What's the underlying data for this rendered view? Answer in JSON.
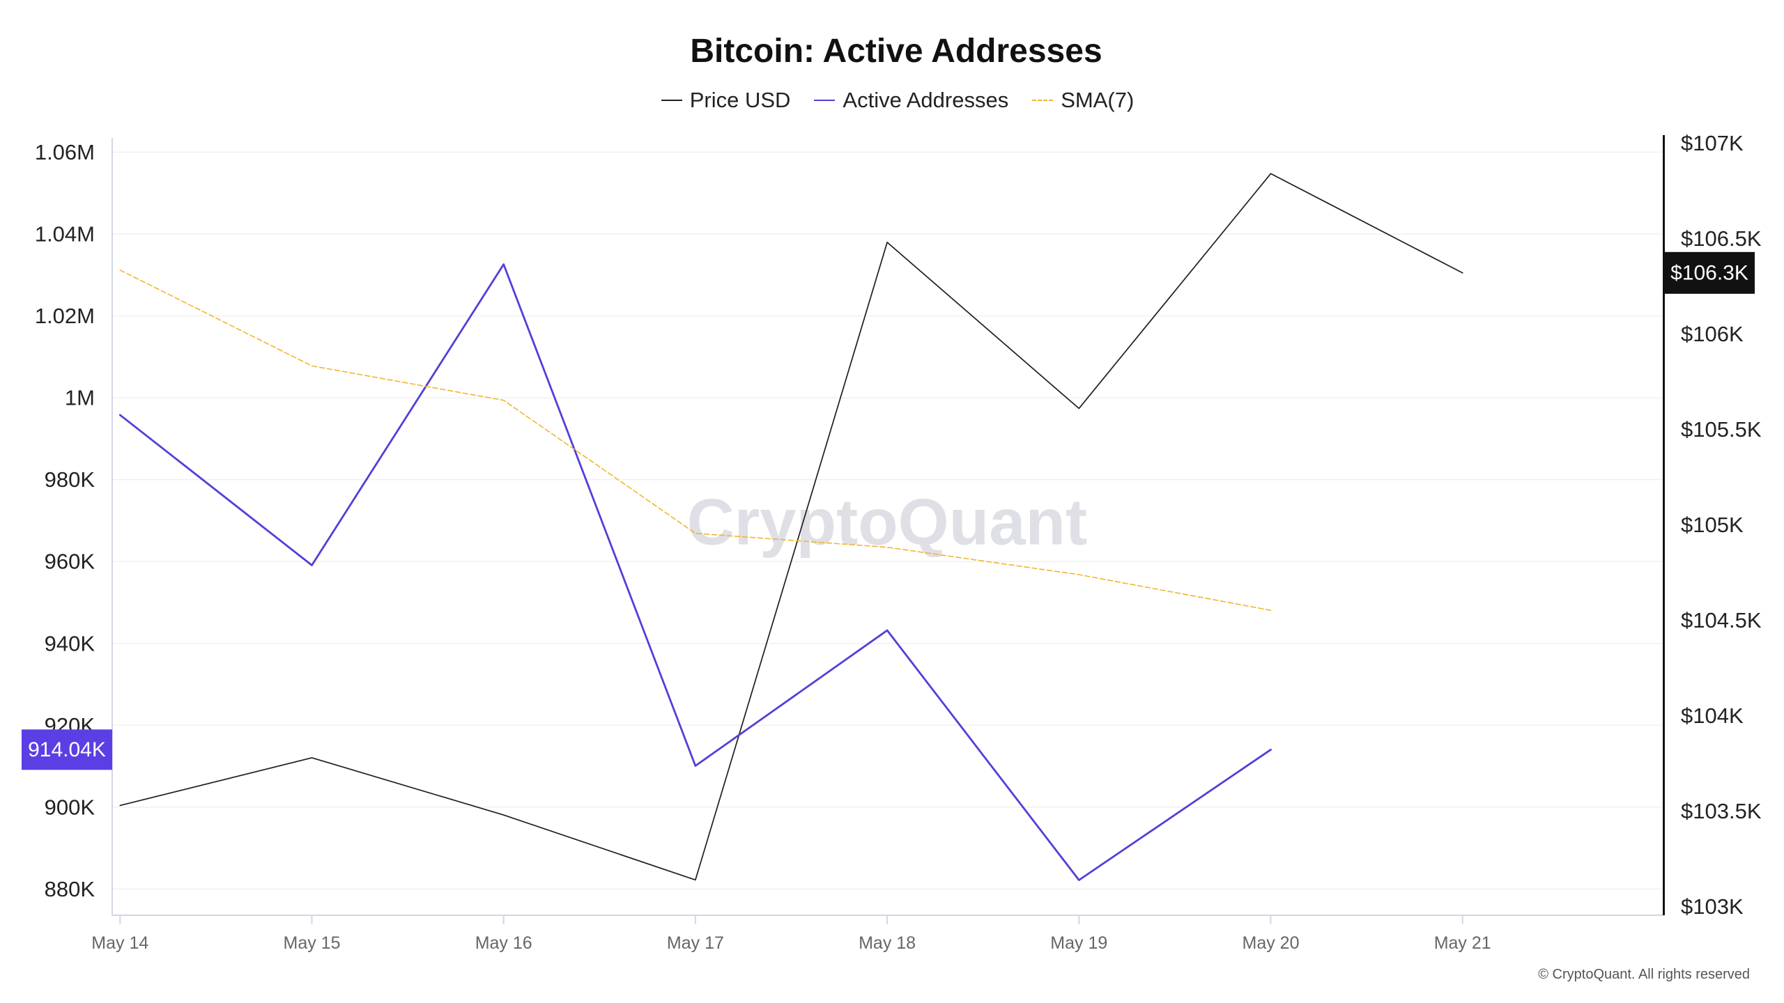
{
  "chart_data": {
    "type": "line",
    "title": "Bitcoin: Active Addresses",
    "x": [
      "May 14",
      "May 15",
      "May 16",
      "May 17",
      "May 18",
      "May 19",
      "May 20",
      "May 21"
    ],
    "series": [
      {
        "name": "Price USD",
        "axis": "right",
        "style": "solid",
        "color": "#1e1e1e",
        "values": [
          103530,
          103780,
          103480,
          103140,
          106480,
          105610,
          106840,
          106320
        ]
      },
      {
        "name": "Active Addresses",
        "axis": "left",
        "style": "solid",
        "color": "#5040d8",
        "values": [
          995800,
          959100,
          1032600,
          910100,
          943200,
          882200,
          914040,
          null
        ]
      },
      {
        "name": "SMA(7)",
        "axis": "left",
        "style": "dashed",
        "color": "#f2b530",
        "values": [
          1031200,
          1007800,
          999400,
          966900,
          963500,
          956800,
          948100,
          null
        ]
      }
    ],
    "y_left": {
      "ylim": [
        880000,
        1060000
      ],
      "ticks": [
        1060000,
        1040000,
        1020000,
        1000000,
        980000,
        960000,
        940000,
        920000,
        900000,
        880000
      ],
      "tick_labels": [
        "1.06M",
        "1.04M",
        "1.02M",
        "1M",
        "980K",
        "960K",
        "940K",
        "920K",
        "900K",
        "880K"
      ]
    },
    "y_right": {
      "ylim": [
        103000,
        107000
      ],
      "ticks": [
        107000,
        106500,
        106000,
        105500,
        105000,
        104500,
        104000,
        103500,
        103000
      ],
      "tick_labels": [
        "$107K",
        "$106.5K",
        "$106K",
        "$105.5K",
        "$105K",
        "$104.5K",
        "$104K",
        "$103.5K",
        "$103K"
      ]
    },
    "grid": true,
    "legend": {
      "placement": "top-center"
    },
    "value_badges": {
      "active_addresses": {
        "label": "914.04K",
        "color": "#5b3fe4"
      },
      "price_usd": {
        "label": "$106.3K",
        "color": "#111111"
      }
    }
  },
  "watermark": "CryptoQuant",
  "copyright": "© CryptoQuant. All rights reserved"
}
